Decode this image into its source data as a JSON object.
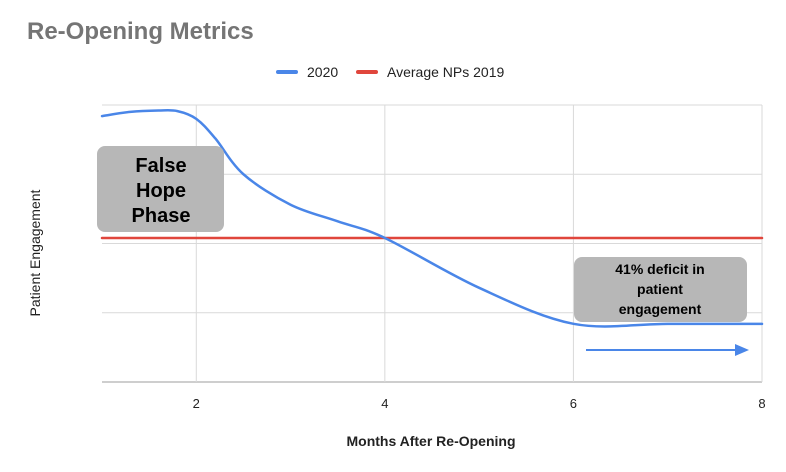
{
  "chart_data": {
    "type": "line",
    "title": "Re-Opening Metrics",
    "xlabel": "Months After Re-Opening",
    "ylabel": "Patient Engagement",
    "xlim": [
      1,
      8
    ],
    "ylim": [
      0,
      100
    ],
    "xticks": [
      "2",
      "4",
      "6",
      "8"
    ],
    "grid": true,
    "legend_position": "top",
    "series": [
      {
        "name": "2020",
        "color": "#4a86e8",
        "points": [
          [
            1,
            96
          ],
          [
            1.3,
            97.5
          ],
          [
            1.6,
            98
          ],
          [
            1.8,
            97.8
          ],
          [
            2,
            95
          ],
          [
            2.2,
            88
          ],
          [
            2.5,
            75
          ],
          [
            3,
            64
          ],
          [
            3.5,
            58
          ],
          [
            4,
            52
          ],
          [
            5,
            34
          ],
          [
            6,
            21
          ],
          [
            7,
            21
          ],
          [
            8,
            21
          ]
        ]
      },
      {
        "name": "Average NPs 2019",
        "color": "#e0463c",
        "points": [
          [
            1,
            52
          ],
          [
            8,
            52
          ]
        ]
      }
    ],
    "annotations": [
      {
        "lines": [
          "False",
          "Hope",
          "Phase"
        ]
      },
      {
        "lines": [
          "41% deficit in",
          "patient",
          "engagement"
        ]
      }
    ],
    "colors": {
      "box_fill": "#b7b7b7",
      "grid": "#d9d9d9"
    }
  }
}
